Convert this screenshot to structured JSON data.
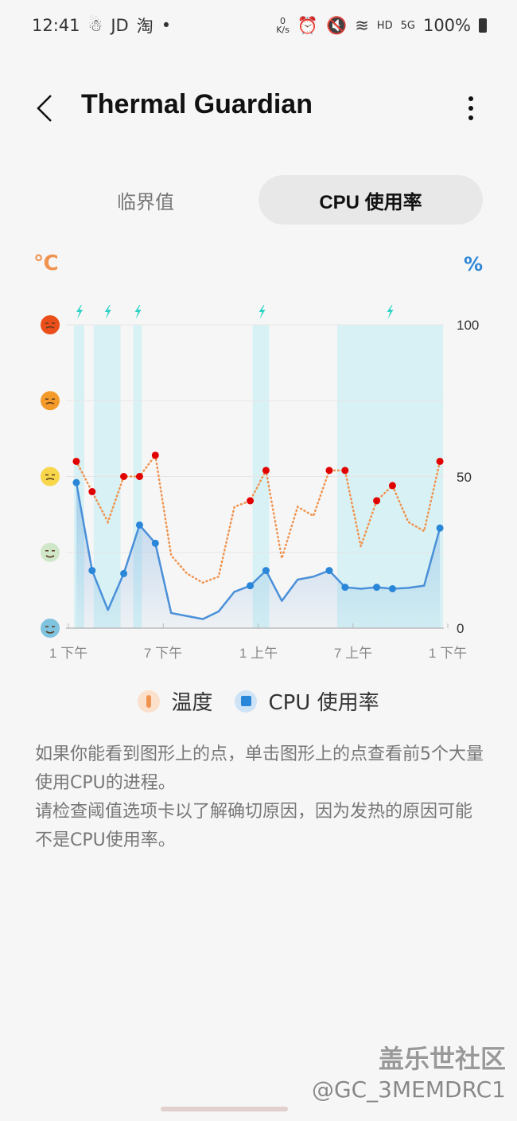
{
  "status_bar": {
    "time": "12:41",
    "left_icons": [
      "JD",
      "淘"
    ],
    "net_speed_value": "0",
    "net_speed_unit": "K/s",
    "network": "HD",
    "signal": "5G",
    "battery": "100%"
  },
  "header": {
    "title": "Thermal Guardian",
    "back_icon": "chevron-left-icon",
    "more_icon": "more-vertical-icon"
  },
  "tabs": [
    {
      "label": "临界值",
      "selected": false
    },
    {
      "label": "CPU 使用率",
      "selected": true
    }
  ],
  "axis_units": {
    "left": "℃",
    "right": "%"
  },
  "chart_data": {
    "type": "line",
    "x_tick_labels": [
      "1 下午",
      "7 下午",
      "1 上午",
      "7 上午",
      "1 下午"
    ],
    "x_hours_span": 24,
    "right_axis": {
      "ticks": [
        0,
        50,
        100
      ],
      "range": [
        0,
        100
      ]
    },
    "left_axis": {
      "type": "emoji-levels",
      "levels": 5
    },
    "grid": true,
    "x_hours": [
      0.5,
      1.5,
      2.5,
      3.5,
      4.5,
      5.5,
      6.5,
      7.5,
      8.5,
      9.5,
      10.5,
      11.5,
      12.5,
      13.5,
      14.5,
      15.5,
      16.5,
      17.5,
      18.5,
      19.5,
      20.5,
      21.5,
      22.5,
      23.5
    ],
    "series": [
      {
        "name": "温度",
        "color": "#f0934f",
        "marker_color": "#e00000",
        "style": "dotted",
        "values": [
          55,
          45,
          35,
          50,
          50,
          57,
          24,
          18,
          15,
          17,
          40,
          42,
          52,
          23,
          40,
          37,
          52,
          52,
          27,
          42,
          47,
          35,
          32,
          55
        ],
        "markers": [
          0,
          1,
          3,
          4,
          5,
          11,
          12,
          16,
          17,
          19,
          20,
          23
        ]
      },
      {
        "name": "CPU 使用率",
        "color": "#4a90d9",
        "marker_color": "#2a86d8",
        "style": "solid-area",
        "values": [
          48,
          19,
          6,
          18,
          34,
          28,
          5,
          4,
          3,
          5.5,
          12,
          14,
          19,
          9,
          16,
          17,
          19,
          13.5,
          13,
          13.5,
          13,
          13.3,
          14,
          33
        ],
        "markers": [
          0,
          1,
          3,
          4,
          5,
          11,
          12,
          16,
          17,
          19,
          20,
          23
        ]
      }
    ],
    "charging_periods": [
      [
        0.35,
        1.0
      ],
      [
        1.6,
        3.3
      ],
      [
        4.1,
        4.65
      ],
      [
        11.65,
        12.7
      ],
      [
        17.0,
        23.7
      ]
    ],
    "charging_icon_hours": [
      0.65,
      2.45,
      4.35,
      12.2,
      20.3
    ],
    "charging_band_color": "#d8f1f4",
    "charging_icon_color": "#2ed3c6"
  },
  "legend": [
    {
      "label": "温度",
      "icon": "thermometer-icon",
      "color": "#f0934f"
    },
    {
      "label": "CPU 使用率",
      "icon": "cpu-chip-icon",
      "color": "#2a86d8"
    }
  ],
  "description": [
    "如果你能看到图形上的点，单击图形上的点查看前5个大量使用CPU的进程。",
    "请检查阈值选项卡以了解确切原因，因为发热的原因可能不是CPU使用率。"
  ],
  "watermark": {
    "line1": "盖乐世社区",
    "line2": "@GC_3MEMDRC1"
  }
}
